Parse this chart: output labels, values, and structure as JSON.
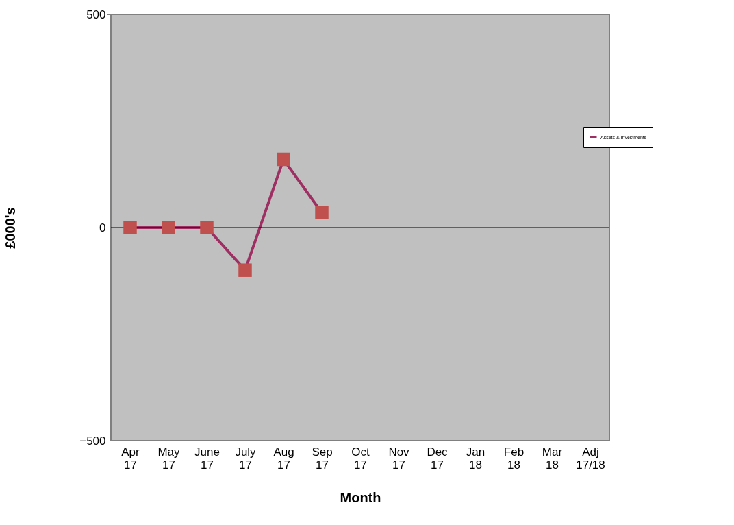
{
  "chart_data": {
    "type": "line",
    "xlabel": "Month",
    "ylabel": "£000's",
    "categories": [
      "Apr 17",
      "May 17",
      "June 17",
      "July 17",
      "Aug 17",
      "Sep 17",
      "Oct 17",
      "Nov 17",
      "Dec 17",
      "Jan 18",
      "Feb 18",
      "Mar 18",
      "Adj 17/18"
    ],
    "series": [
      {
        "name": "Assets & Investments",
        "color": "#9e2f62",
        "colors": [
          "#c0504d",
          "#c0504d",
          "#c0504d",
          "#c0504d",
          "#c0504d",
          "#c0504d",
          "#c0504d",
          "#c0504d",
          "#c0504d",
          "#c0504d",
          "#c0504d",
          "#c0504d",
          "#c0504d"
        ],
        "values": [
          0,
          0,
          0,
          -100,
          160,
          35,
          null,
          null,
          null,
          null,
          null,
          null,
          null
        ]
      }
    ],
    "ylim": [
      -500,
      500
    ],
    "yticks": [
      -500,
      0,
      500
    ],
    "ref_lines": [
      {
        "axis": "y",
        "value": 0,
        "color": "#000000"
      }
    ],
    "marker": "square",
    "line_style": "solid",
    "legend": "right",
    "grid": false
  }
}
